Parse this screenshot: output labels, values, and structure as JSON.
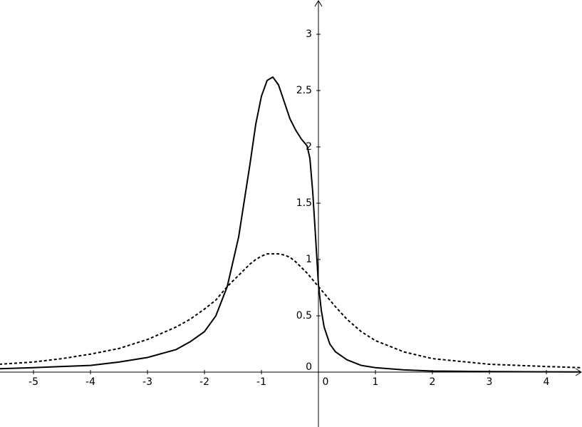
{
  "chart_data": {
    "type": "line",
    "x": [
      -5.6,
      -5,
      -4.5,
      -4,
      -3.5,
      -3,
      -2.5,
      -2.25,
      -2,
      -1.8,
      -1.6,
      -1.4,
      -1.2,
      -1.1,
      -1,
      -0.9,
      -0.8,
      -0.7,
      -0.6,
      -0.5,
      -0.4,
      -0.3,
      -0.2,
      -0.15,
      -0.1,
      -0.05,
      0,
      0.05,
      0.1,
      0.2,
      0.3,
      0.5,
      0.75,
      1,
      1.5,
      2,
      3,
      4,
      4.6
    ],
    "series": [
      {
        "color": "#000000",
        "style": "solid",
        "values": [
          0.03,
          0.04,
          0.05,
          0.06,
          0.09,
          0.13,
          0.2,
          0.27,
          0.36,
          0.5,
          0.76,
          1.2,
          1.85,
          2.2,
          2.45,
          2.59,
          2.62,
          2.55,
          2.4,
          2.25,
          2.15,
          2.07,
          2.01,
          1.9,
          1.6,
          1.2,
          0.78,
          0.55,
          0.4,
          0.25,
          0.18,
          0.11,
          0.06,
          0.04,
          0.02,
          0.01,
          0.005,
          0.003,
          0.002
        ]
      },
      {
        "color": "#000000",
        "style": "dashed",
        "values": [
          0.07,
          0.09,
          0.12,
          0.16,
          0.21,
          0.29,
          0.4,
          0.47,
          0.56,
          0.64,
          0.76,
          0.86,
          0.96,
          1.0,
          1.03,
          1.05,
          1.05,
          1.05,
          1.04,
          1.02,
          0.98,
          0.93,
          0.88,
          0.85,
          0.82,
          0.79,
          0.76,
          0.73,
          0.7,
          0.64,
          0.58,
          0.47,
          0.36,
          0.28,
          0.18,
          0.12,
          0.07,
          0.05,
          0.04
        ]
      }
    ],
    "xlim": [
      -5.5875,
      4.625
    ],
    "ylim": [
      -0.487,
      3.304
    ],
    "xticks": [
      -5,
      -4,
      -3,
      -2,
      -1,
      0,
      1,
      2,
      3,
      4
    ],
    "yticks": [
      0,
      0.5,
      1,
      1.5,
      2,
      2.5,
      3
    ]
  }
}
